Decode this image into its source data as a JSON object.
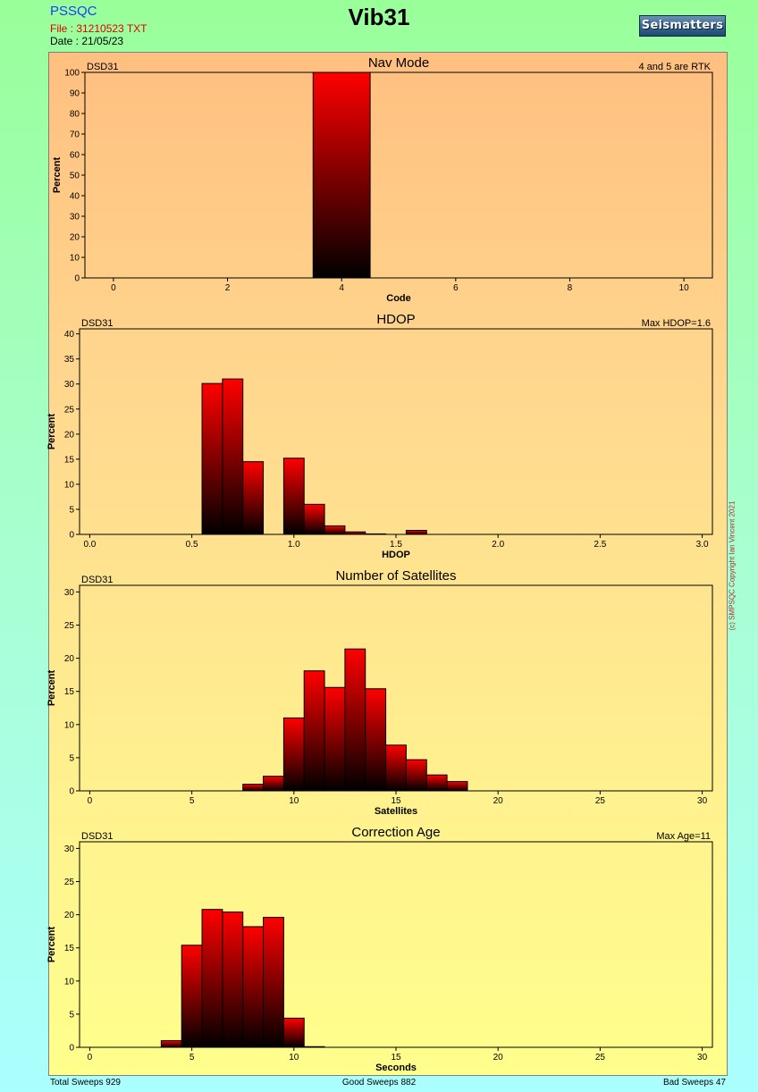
{
  "header": {
    "app": "PSSQC",
    "file": "File : 31210523 TXT",
    "date": "Date : 21/05/23",
    "title": "Vib31",
    "logo": "Seismatters"
  },
  "copyright": "(c) SMPSQC Copyright Ian Vincent 2021",
  "footer": {
    "total": "Total Sweeps 929",
    "good": "Good Sweeps 882",
    "bad": "Bad Sweeps 47"
  },
  "chart_data": [
    {
      "type": "bar",
      "title": "Nav Mode",
      "left_label": "DSD31",
      "right_label": "4 and 5 are RTK",
      "xlabel": "Code",
      "ylabel": "Percent",
      "xlim": [
        -0.5,
        10.5
      ],
      "ylim": [
        0,
        100
      ],
      "xticks": [
        0,
        2,
        4,
        6,
        8,
        10
      ],
      "yticks": [
        0,
        10,
        20,
        30,
        40,
        50,
        60,
        70,
        80,
        90,
        100
      ],
      "bar_width": 1,
      "bars": [
        {
          "x": 4,
          "y": 100
        }
      ]
    },
    {
      "type": "bar",
      "title": "HDOP",
      "left_label": "DSD31",
      "right_label": "Max HDOP=1.6",
      "xlabel": "HDOP",
      "ylabel": "Percent",
      "xlim": [
        -0.05,
        3.05
      ],
      "ylim": [
        0,
        41
      ],
      "xticks": [
        "0.0",
        "0.5",
        "1.0",
        "1.5",
        "2.0",
        "2.5",
        "3.0"
      ],
      "yticks": [
        0,
        5,
        10,
        15,
        20,
        25,
        30,
        35,
        40
      ],
      "bar_width": 0.1,
      "bars": [
        {
          "x": 0.6,
          "y": 30.1
        },
        {
          "x": 0.7,
          "y": 31.0
        },
        {
          "x": 0.8,
          "y": 14.5
        },
        {
          "x": 1.0,
          "y": 15.2
        },
        {
          "x": 1.1,
          "y": 6.0
        },
        {
          "x": 1.2,
          "y": 1.7
        },
        {
          "x": 1.3,
          "y": 0.5
        },
        {
          "x": 1.4,
          "y": 0.1
        },
        {
          "x": 1.6,
          "y": 0.8
        }
      ]
    },
    {
      "type": "bar",
      "title": "Number of Satellites",
      "left_label": "DSD31",
      "right_label": "",
      "xlabel": "Satellites",
      "ylabel": "Percent",
      "xlim": [
        -0.5,
        30.5
      ],
      "ylim": [
        0,
        31
      ],
      "xticks": [
        0,
        5,
        10,
        15,
        20,
        25,
        30
      ],
      "yticks": [
        0,
        5,
        10,
        15,
        20,
        25,
        30
      ],
      "bar_width": 1,
      "bars": [
        {
          "x": 8,
          "y": 1.0
        },
        {
          "x": 9,
          "y": 2.2
        },
        {
          "x": 10,
          "y": 11.0
        },
        {
          "x": 11,
          "y": 18.1
        },
        {
          "x": 12,
          "y": 15.6
        },
        {
          "x": 13,
          "y": 21.4
        },
        {
          "x": 14,
          "y": 15.4
        },
        {
          "x": 15,
          "y": 6.9
        },
        {
          "x": 16,
          "y": 4.7
        },
        {
          "x": 17,
          "y": 2.4
        },
        {
          "x": 18,
          "y": 1.4
        }
      ]
    },
    {
      "type": "bar",
      "title": "Correction Age",
      "left_label": "DSD31",
      "right_label": "Max Age=11",
      "xlabel": "Seconds",
      "ylabel": "Percent",
      "xlim": [
        -0.5,
        30.5
      ],
      "ylim": [
        0,
        31
      ],
      "xticks": [
        0,
        5,
        10,
        15,
        20,
        25,
        30
      ],
      "yticks": [
        0,
        5,
        10,
        15,
        20,
        25,
        30
      ],
      "bar_width": 1,
      "bars": [
        {
          "x": 4,
          "y": 1.0
        },
        {
          "x": 5,
          "y": 15.4
        },
        {
          "x": 6,
          "y": 20.8
        },
        {
          "x": 7,
          "y": 20.4
        },
        {
          "x": 8,
          "y": 18.2
        },
        {
          "x": 9,
          "y": 19.6
        },
        {
          "x": 10,
          "y": 4.4
        },
        {
          "x": 11,
          "y": 0.1
        }
      ]
    }
  ]
}
